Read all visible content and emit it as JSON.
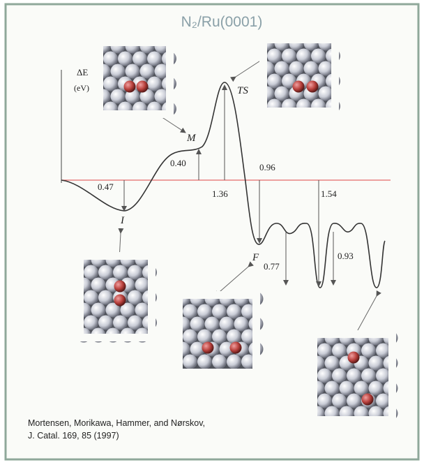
{
  "title": "N₂/Ru(0001)",
  "axis": {
    "label": "ΔE",
    "unit": "(eV)"
  },
  "states": {
    "initial": "I",
    "intermediate": "M",
    "transition": "TS",
    "final": "F"
  },
  "energies": {
    "adsorption": "0.47",
    "intermediate": "0.40",
    "barrier": "1.36",
    "reaction": "0.96",
    "final_diff": "1.54",
    "diffusion_1": "0.77",
    "diffusion_2": "0.93"
  },
  "citation": {
    "line1": "Mortensen, Morikawa, Hammer, and Nørskov,",
    "line2": "J. Catal. 169, 85 (1997)"
  }
}
